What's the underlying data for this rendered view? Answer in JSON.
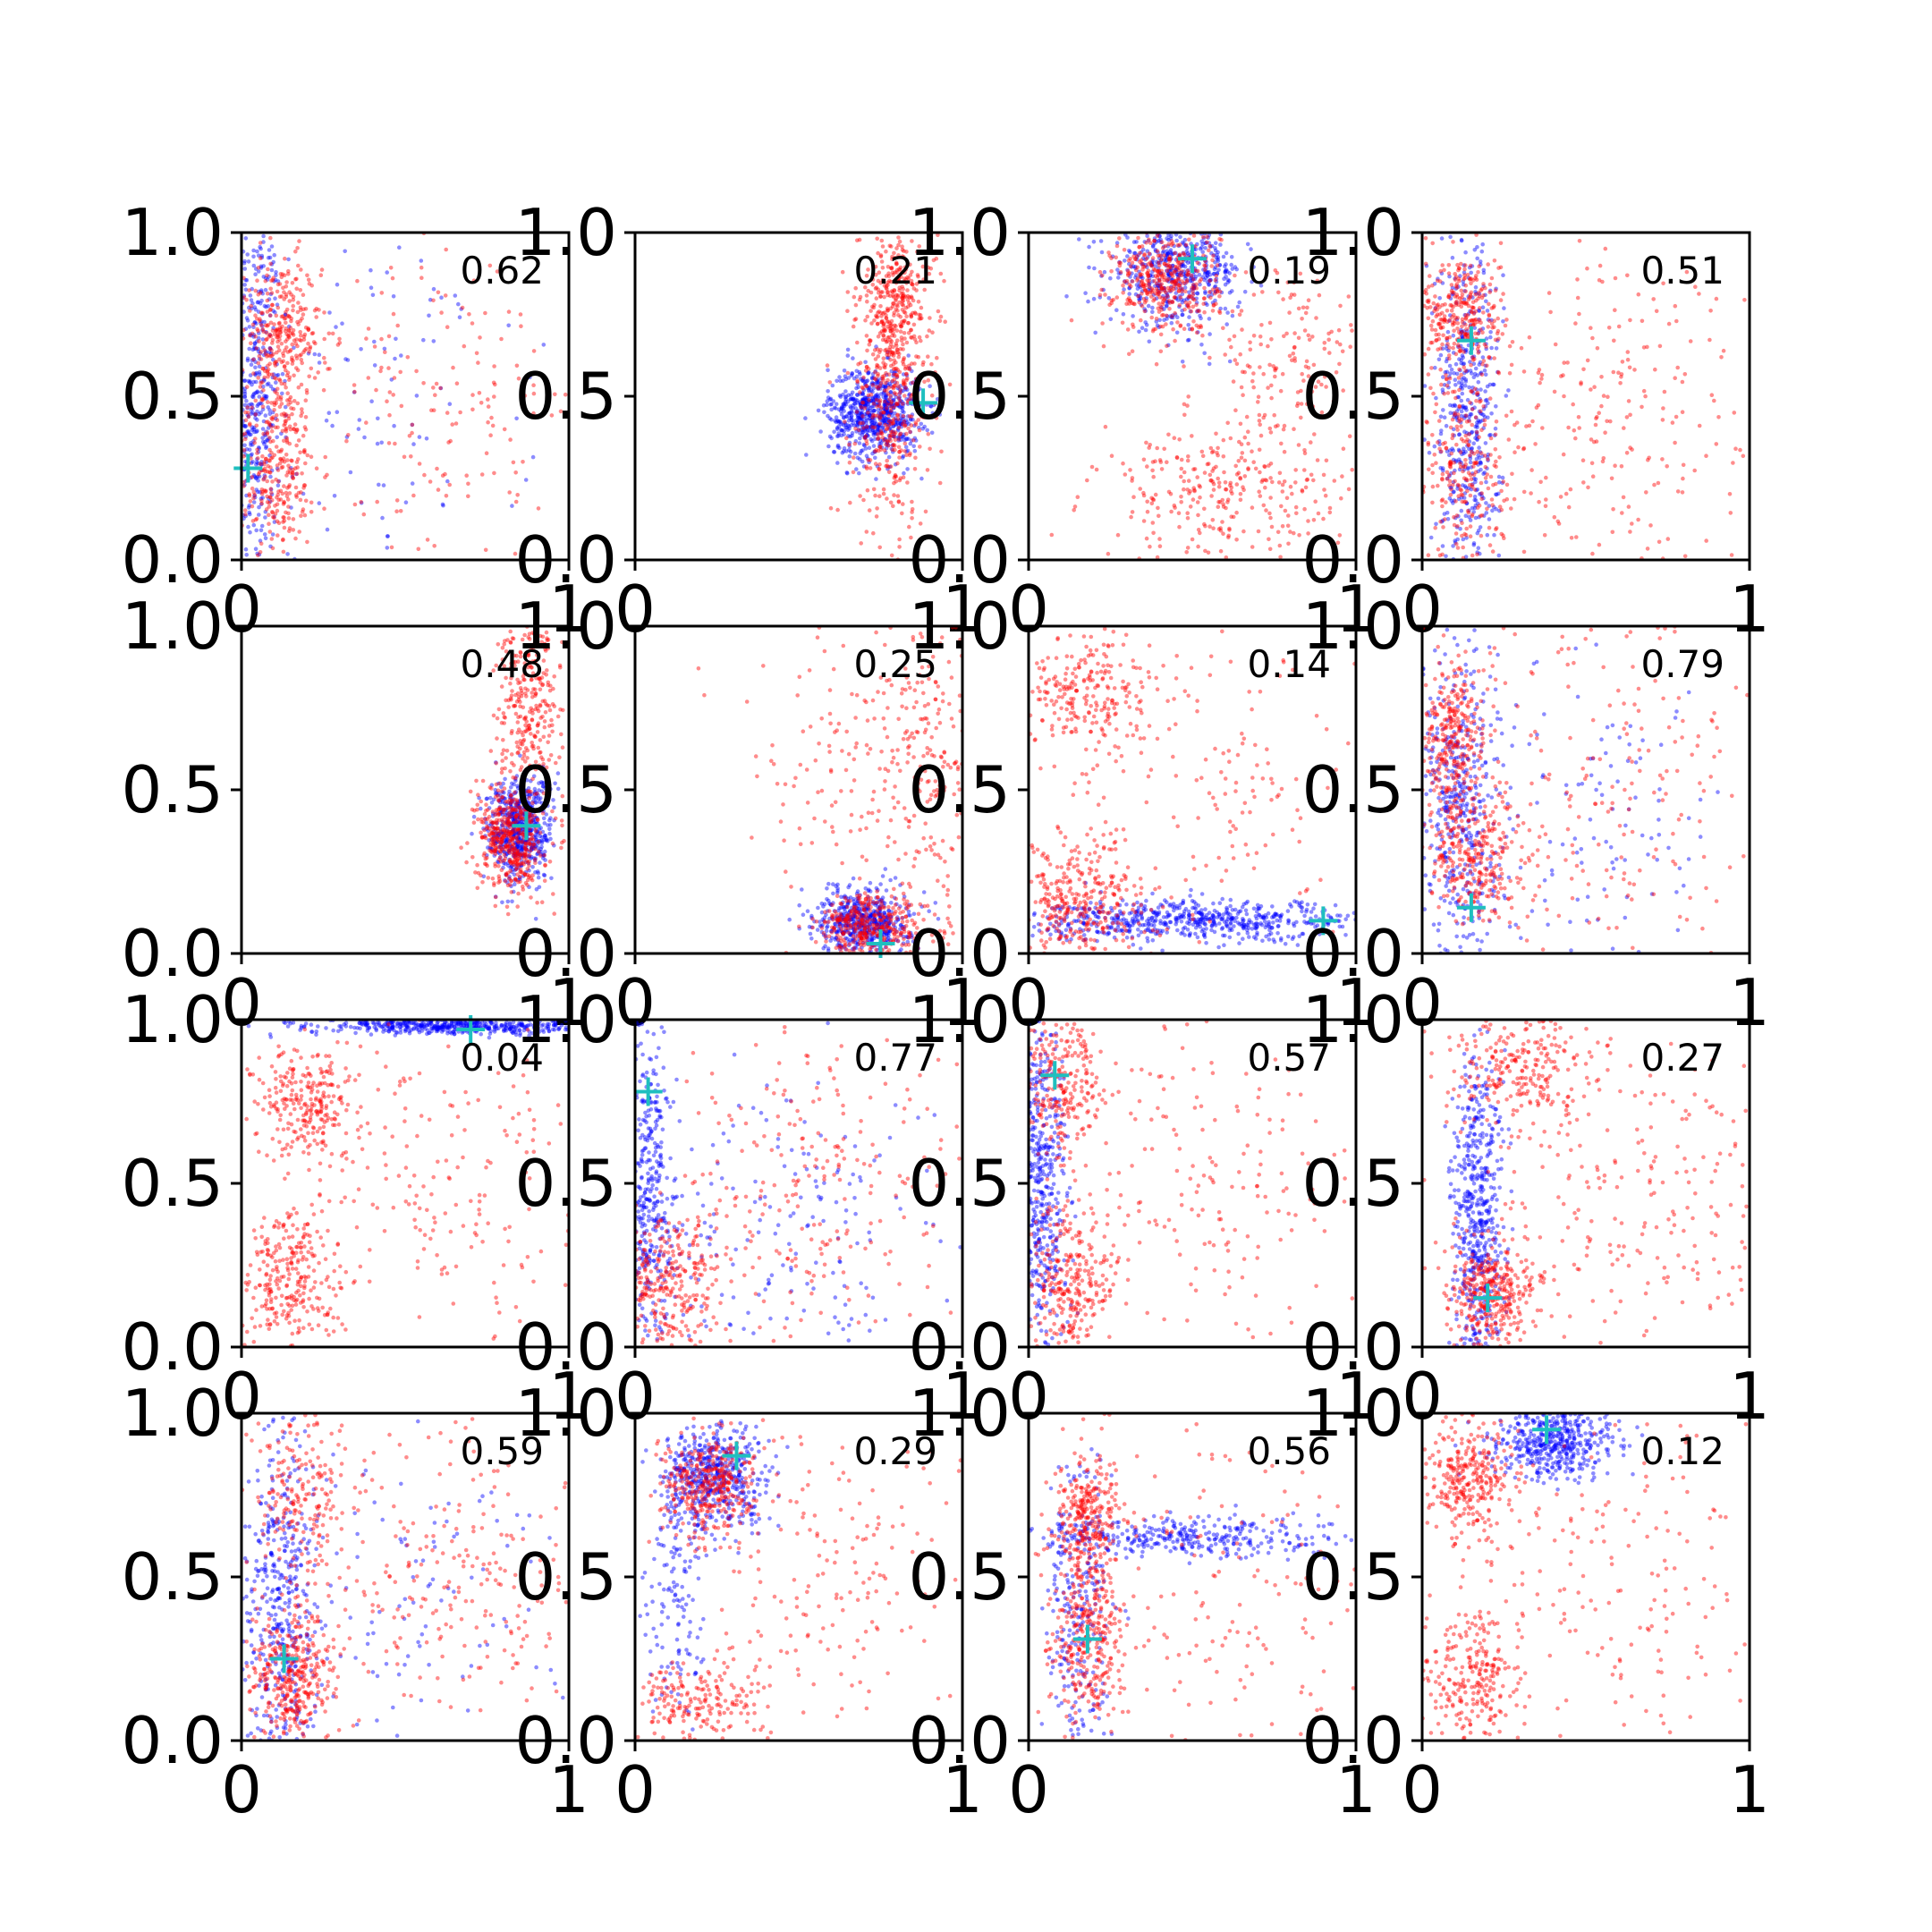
{
  "figure": {
    "background": "#ffffff",
    "colors": {
      "series_a": "#0000ff",
      "series_b": "#ff0000",
      "marker": "#1fbfbf"
    }
  },
  "chart_data": [
    {
      "type": "scatter",
      "annotation": "0.62",
      "xlim": [
        0,
        1
      ],
      "ylim": [
        0,
        1
      ],
      "x_ticks": [
        "0",
        "1"
      ],
      "y_ticks": [
        "0.0",
        "0.5",
        "1.0"
      ],
      "marker": {
        "x": 0.02,
        "y": 0.28
      },
      "clusters": [
        {
          "series": "blue",
          "n": 450,
          "cx": 0.04,
          "cy": 0.5,
          "sx": 0.04,
          "sy": 0.3
        },
        {
          "series": "blue",
          "n": 120,
          "cx": 0.4,
          "cy": 0.5,
          "sx": 0.25,
          "sy": 0.3
        },
        {
          "series": "red",
          "n": 320,
          "cx": 0.12,
          "cy": 0.68,
          "sx": 0.06,
          "sy": 0.12
        },
        {
          "series": "red",
          "n": 300,
          "cx": 0.1,
          "cy": 0.28,
          "sx": 0.07,
          "sy": 0.12
        },
        {
          "series": "red",
          "n": 200,
          "cx": 0.6,
          "cy": 0.5,
          "sx": 0.25,
          "sy": 0.3
        }
      ]
    },
    {
      "type": "scatter",
      "annotation": "0.21",
      "xlim": [
        0,
        1
      ],
      "ylim": [
        0,
        1
      ],
      "x_ticks": [
        "0",
        "1"
      ],
      "y_ticks": [
        "0.0",
        "0.5",
        "1.0"
      ],
      "marker": {
        "x": 0.88,
        "y": 0.48
      },
      "clusters": [
        {
          "series": "blue",
          "n": 700,
          "cx": 0.73,
          "cy": 0.45,
          "sx": 0.07,
          "sy": 0.07
        },
        {
          "series": "red",
          "n": 450,
          "cx": 0.78,
          "cy": 0.5,
          "sx": 0.06,
          "sy": 0.2
        },
        {
          "series": "red",
          "n": 250,
          "cx": 0.8,
          "cy": 0.8,
          "sx": 0.06,
          "sy": 0.1
        }
      ]
    },
    {
      "type": "scatter",
      "annotation": "0.19",
      "xlim": [
        0,
        1
      ],
      "ylim": [
        0,
        1
      ],
      "x_ticks": [
        "0",
        "1"
      ],
      "y_ticks": [
        "0.0",
        "0.5",
        "1.0"
      ],
      "marker": {
        "x": 0.5,
        "y": 0.92
      },
      "clusters": [
        {
          "series": "blue",
          "n": 550,
          "cx": 0.45,
          "cy": 0.88,
          "sx": 0.1,
          "sy": 0.08
        },
        {
          "series": "red",
          "n": 400,
          "cx": 0.42,
          "cy": 0.85,
          "sx": 0.08,
          "sy": 0.08
        },
        {
          "series": "red",
          "n": 300,
          "cx": 0.6,
          "cy": 0.2,
          "sx": 0.2,
          "sy": 0.1
        },
        {
          "series": "red",
          "n": 150,
          "cx": 0.8,
          "cy": 0.6,
          "sx": 0.12,
          "sy": 0.15
        }
      ]
    },
    {
      "type": "scatter",
      "annotation": "0.51",
      "xlim": [
        0,
        1
      ],
      "ylim": [
        0,
        1
      ],
      "x_ticks": [
        "0",
        "1"
      ],
      "y_ticks": [
        "0.0",
        "0.5",
        "1.0"
      ],
      "marker": {
        "x": 0.15,
        "y": 0.67
      },
      "clusters": [
        {
          "series": "blue",
          "n": 500,
          "cx": 0.14,
          "cy": 0.45,
          "sx": 0.05,
          "sy": 0.28
        },
        {
          "series": "red",
          "n": 300,
          "cx": 0.12,
          "cy": 0.75,
          "sx": 0.06,
          "sy": 0.1
        },
        {
          "series": "red",
          "n": 250,
          "cx": 0.12,
          "cy": 0.3,
          "sx": 0.07,
          "sy": 0.15
        },
        {
          "series": "red",
          "n": 250,
          "cx": 0.55,
          "cy": 0.45,
          "sx": 0.25,
          "sy": 0.28
        }
      ]
    },
    {
      "type": "scatter",
      "annotation": "0.48",
      "xlim": [
        0,
        1
      ],
      "ylim": [
        0,
        1
      ],
      "x_ticks": [
        "0",
        "1"
      ],
      "y_ticks": [
        "0.0",
        "0.5",
        "1.0"
      ],
      "marker": {
        "x": 0.87,
        "y": 0.39
      },
      "clusters": [
        {
          "series": "blue",
          "n": 600,
          "cx": 0.85,
          "cy": 0.38,
          "sx": 0.05,
          "sy": 0.08
        },
        {
          "series": "red",
          "n": 450,
          "cx": 0.82,
          "cy": 0.35,
          "sx": 0.05,
          "sy": 0.08
        },
        {
          "series": "red",
          "n": 300,
          "cx": 0.88,
          "cy": 0.75,
          "sx": 0.05,
          "sy": 0.15
        }
      ]
    },
    {
      "type": "scatter",
      "annotation": "0.25",
      "xlim": [
        0,
        1
      ],
      "ylim": [
        0,
        1
      ],
      "x_ticks": [
        "0",
        "1"
      ],
      "y_ticks": [
        "0.0",
        "0.5",
        "1.0"
      ],
      "marker": {
        "x": 0.75,
        "y": 0.03
      },
      "clusters": [
        {
          "series": "blue",
          "n": 550,
          "cx": 0.7,
          "cy": 0.1,
          "sx": 0.07,
          "sy": 0.05
        },
        {
          "series": "red",
          "n": 350,
          "cx": 0.72,
          "cy": 0.08,
          "sx": 0.08,
          "sy": 0.05
        },
        {
          "series": "red",
          "n": 300,
          "cx": 0.9,
          "cy": 0.6,
          "sx": 0.1,
          "sy": 0.3
        },
        {
          "series": "red",
          "n": 100,
          "cx": 0.6,
          "cy": 0.6,
          "sx": 0.15,
          "sy": 0.2
        }
      ]
    },
    {
      "type": "scatter",
      "annotation": "0.14",
      "xlim": [
        0,
        1
      ],
      "ylim": [
        0,
        1
      ],
      "x_ticks": [
        "0",
        "1"
      ],
      "y_ticks": [
        "0.0",
        "0.5",
        "1.0"
      ],
      "marker": {
        "x": 0.9,
        "y": 0.1
      },
      "clusters": [
        {
          "series": "blue",
          "n": 650,
          "cx": 0.5,
          "cy": 0.1,
          "sx": 0.28,
          "sy": 0.03
        },
        {
          "series": "red",
          "n": 350,
          "cx": 0.15,
          "cy": 0.15,
          "sx": 0.1,
          "sy": 0.1
        },
        {
          "series": "red",
          "n": 250,
          "cx": 0.18,
          "cy": 0.8,
          "sx": 0.1,
          "sy": 0.1
        },
        {
          "series": "red",
          "n": 150,
          "cx": 0.6,
          "cy": 0.5,
          "sx": 0.25,
          "sy": 0.25
        }
      ]
    },
    {
      "type": "scatter",
      "annotation": "0.79",
      "xlim": [
        0,
        1
      ],
      "ylim": [
        0,
        1
      ],
      "x_ticks": [
        "0",
        "1"
      ],
      "y_ticks": [
        "0.0",
        "0.5",
        "1.0"
      ],
      "marker": {
        "x": 0.15,
        "y": 0.14
      },
      "clusters": [
        {
          "series": "blue",
          "n": 450,
          "cx": 0.12,
          "cy": 0.45,
          "sx": 0.06,
          "sy": 0.28
        },
        {
          "series": "blue",
          "n": 150,
          "cx": 0.5,
          "cy": 0.4,
          "sx": 0.25,
          "sy": 0.3
        },
        {
          "series": "red",
          "n": 300,
          "cx": 0.1,
          "cy": 0.65,
          "sx": 0.05,
          "sy": 0.12
        },
        {
          "series": "red",
          "n": 300,
          "cx": 0.15,
          "cy": 0.3,
          "sx": 0.08,
          "sy": 0.1
        },
        {
          "series": "red",
          "n": 200,
          "cx": 0.6,
          "cy": 0.5,
          "sx": 0.25,
          "sy": 0.3
        }
      ]
    },
    {
      "type": "scatter",
      "annotation": "0.04",
      "xlim": [
        0,
        1
      ],
      "ylim": [
        0,
        1
      ],
      "x_ticks": [
        "0",
        "1"
      ],
      "y_ticks": [
        "0.0",
        "0.5",
        "1.0"
      ],
      "marker": {
        "x": 0.7,
        "y": 0.97
      },
      "clusters": [
        {
          "series": "blue",
          "n": 500,
          "cx": 0.65,
          "cy": 0.98,
          "sx": 0.22,
          "sy": 0.012
        },
        {
          "series": "red",
          "n": 250,
          "cx": 0.2,
          "cy": 0.75,
          "sx": 0.07,
          "sy": 0.08
        },
        {
          "series": "red",
          "n": 300,
          "cx": 0.15,
          "cy": 0.2,
          "sx": 0.08,
          "sy": 0.12
        },
        {
          "series": "red",
          "n": 200,
          "cx": 0.6,
          "cy": 0.5,
          "sx": 0.25,
          "sy": 0.28
        }
      ]
    },
    {
      "type": "scatter",
      "annotation": "0.77",
      "xlim": [
        0,
        1
      ],
      "ylim": [
        0,
        1
      ],
      "x_ticks": [
        "0",
        "1"
      ],
      "y_ticks": [
        "0.0",
        "0.5",
        "1.0"
      ],
      "marker": {
        "x": 0.04,
        "y": 0.78
      },
      "clusters": [
        {
          "series": "blue",
          "n": 400,
          "cx": 0.04,
          "cy": 0.45,
          "sx": 0.04,
          "sy": 0.28
        },
        {
          "series": "blue",
          "n": 200,
          "cx": 0.45,
          "cy": 0.3,
          "sx": 0.28,
          "sy": 0.25
        },
        {
          "series": "red",
          "n": 300,
          "cx": 0.1,
          "cy": 0.2,
          "sx": 0.08,
          "sy": 0.12
        },
        {
          "series": "red",
          "n": 250,
          "cx": 0.55,
          "cy": 0.5,
          "sx": 0.25,
          "sy": 0.28
        }
      ]
    },
    {
      "type": "scatter",
      "annotation": "0.57",
      "xlim": [
        0,
        1
      ],
      "ylim": [
        0,
        1
      ],
      "x_ticks": [
        "0",
        "1"
      ],
      "y_ticks": [
        "0.0",
        "0.5",
        "1.0"
      ],
      "marker": {
        "x": 0.08,
        "y": 0.83
      },
      "clusters": [
        {
          "series": "blue",
          "n": 500,
          "cx": 0.04,
          "cy": 0.5,
          "sx": 0.04,
          "sy": 0.28
        },
        {
          "series": "red",
          "n": 250,
          "cx": 0.1,
          "cy": 0.8,
          "sx": 0.06,
          "sy": 0.1
        },
        {
          "series": "red",
          "n": 300,
          "cx": 0.12,
          "cy": 0.2,
          "sx": 0.07,
          "sy": 0.12
        },
        {
          "series": "red",
          "n": 200,
          "cx": 0.55,
          "cy": 0.5,
          "sx": 0.28,
          "sy": 0.28
        }
      ]
    },
    {
      "type": "scatter",
      "annotation": "0.27",
      "xlim": [
        0,
        1
      ],
      "ylim": [
        0,
        1
      ],
      "x_ticks": [
        "0",
        "1"
      ],
      "y_ticks": [
        "0.0",
        "0.5",
        "1.0"
      ],
      "marker": {
        "x": 0.2,
        "y": 0.15
      },
      "clusters": [
        {
          "series": "blue",
          "n": 550,
          "cx": 0.17,
          "cy": 0.4,
          "sx": 0.04,
          "sy": 0.25
        },
        {
          "series": "red",
          "n": 350,
          "cx": 0.22,
          "cy": 0.17,
          "sx": 0.07,
          "sy": 0.08
        },
        {
          "series": "red",
          "n": 250,
          "cx": 0.3,
          "cy": 0.85,
          "sx": 0.12,
          "sy": 0.08
        },
        {
          "series": "red",
          "n": 250,
          "cx": 0.6,
          "cy": 0.45,
          "sx": 0.25,
          "sy": 0.28
        }
      ]
    },
    {
      "type": "scatter",
      "annotation": "0.59",
      "xlim": [
        0,
        1
      ],
      "ylim": [
        0,
        1
      ],
      "x_ticks": [
        "0",
        "1"
      ],
      "y_ticks": [
        "0.0",
        "0.5",
        "1.0"
      ],
      "marker": {
        "x": 0.13,
        "y": 0.25
      },
      "clusters": [
        {
          "series": "blue",
          "n": 450,
          "cx": 0.12,
          "cy": 0.4,
          "sx": 0.06,
          "sy": 0.28
        },
        {
          "series": "blue",
          "n": 120,
          "cx": 0.5,
          "cy": 0.4,
          "sx": 0.25,
          "sy": 0.3
        },
        {
          "series": "red",
          "n": 350,
          "cx": 0.15,
          "cy": 0.2,
          "sx": 0.07,
          "sy": 0.1
        },
        {
          "series": "red",
          "n": 200,
          "cx": 0.18,
          "cy": 0.75,
          "sx": 0.07,
          "sy": 0.15
        },
        {
          "series": "red",
          "n": 250,
          "cx": 0.6,
          "cy": 0.5,
          "sx": 0.25,
          "sy": 0.28
        }
      ]
    },
    {
      "type": "scatter",
      "annotation": "0.29",
      "xlim": [
        0,
        1
      ],
      "ylim": [
        0,
        1
      ],
      "x_ticks": [
        "0",
        "1"
      ],
      "y_ticks": [
        "0.0",
        "0.5",
        "1.0"
      ],
      "marker": {
        "x": 0.31,
        "y": 0.87
      },
      "clusters": [
        {
          "series": "blue",
          "n": 500,
          "cx": 0.25,
          "cy": 0.8,
          "sx": 0.08,
          "sy": 0.08
        },
        {
          "series": "blue",
          "n": 150,
          "cx": 0.12,
          "cy": 0.45,
          "sx": 0.04,
          "sy": 0.2
        },
        {
          "series": "red",
          "n": 350,
          "cx": 0.22,
          "cy": 0.78,
          "sx": 0.07,
          "sy": 0.08
        },
        {
          "series": "red",
          "n": 200,
          "cx": 0.2,
          "cy": 0.1,
          "sx": 0.1,
          "sy": 0.07
        },
        {
          "series": "red",
          "n": 200,
          "cx": 0.6,
          "cy": 0.5,
          "sx": 0.25,
          "sy": 0.28
        }
      ]
    },
    {
      "type": "scatter",
      "annotation": "0.56",
      "xlim": [
        0,
        1
      ],
      "ylim": [
        0,
        1
      ],
      "x_ticks": [
        "0",
        "1"
      ],
      "y_ticks": [
        "0.0",
        "0.5",
        "1.0"
      ],
      "marker": {
        "x": 0.18,
        "y": 0.31
      },
      "clusters": [
        {
          "series": "blue",
          "n": 350,
          "cx": 0.5,
          "cy": 0.62,
          "sx": 0.25,
          "sy": 0.03
        },
        {
          "series": "blue",
          "n": 250,
          "cx": 0.15,
          "cy": 0.4,
          "sx": 0.05,
          "sy": 0.25
        },
        {
          "series": "red",
          "n": 300,
          "cx": 0.18,
          "cy": 0.68,
          "sx": 0.05,
          "sy": 0.1
        },
        {
          "series": "red",
          "n": 300,
          "cx": 0.18,
          "cy": 0.3,
          "sx": 0.05,
          "sy": 0.12
        },
        {
          "series": "red",
          "n": 150,
          "cx": 0.6,
          "cy": 0.45,
          "sx": 0.25,
          "sy": 0.25
        }
      ]
    },
    {
      "type": "scatter",
      "annotation": "0.12",
      "xlim": [
        0,
        1
      ],
      "ylim": [
        0,
        1
      ],
      "x_ticks": [
        "0",
        "1"
      ],
      "y_ticks": [
        "0.0",
        "0.5",
        "1.0"
      ],
      "marker": {
        "x": 0.38,
        "y": 0.95
      },
      "clusters": [
        {
          "series": "blue",
          "n": 500,
          "cx": 0.4,
          "cy": 0.92,
          "sx": 0.1,
          "sy": 0.06
        },
        {
          "series": "red",
          "n": 300,
          "cx": 0.15,
          "cy": 0.8,
          "sx": 0.07,
          "sy": 0.1
        },
        {
          "series": "red",
          "n": 250,
          "cx": 0.15,
          "cy": 0.2,
          "sx": 0.07,
          "sy": 0.1
        },
        {
          "series": "red",
          "n": 200,
          "cx": 0.6,
          "cy": 0.5,
          "sx": 0.25,
          "sy": 0.28
        }
      ]
    }
  ]
}
